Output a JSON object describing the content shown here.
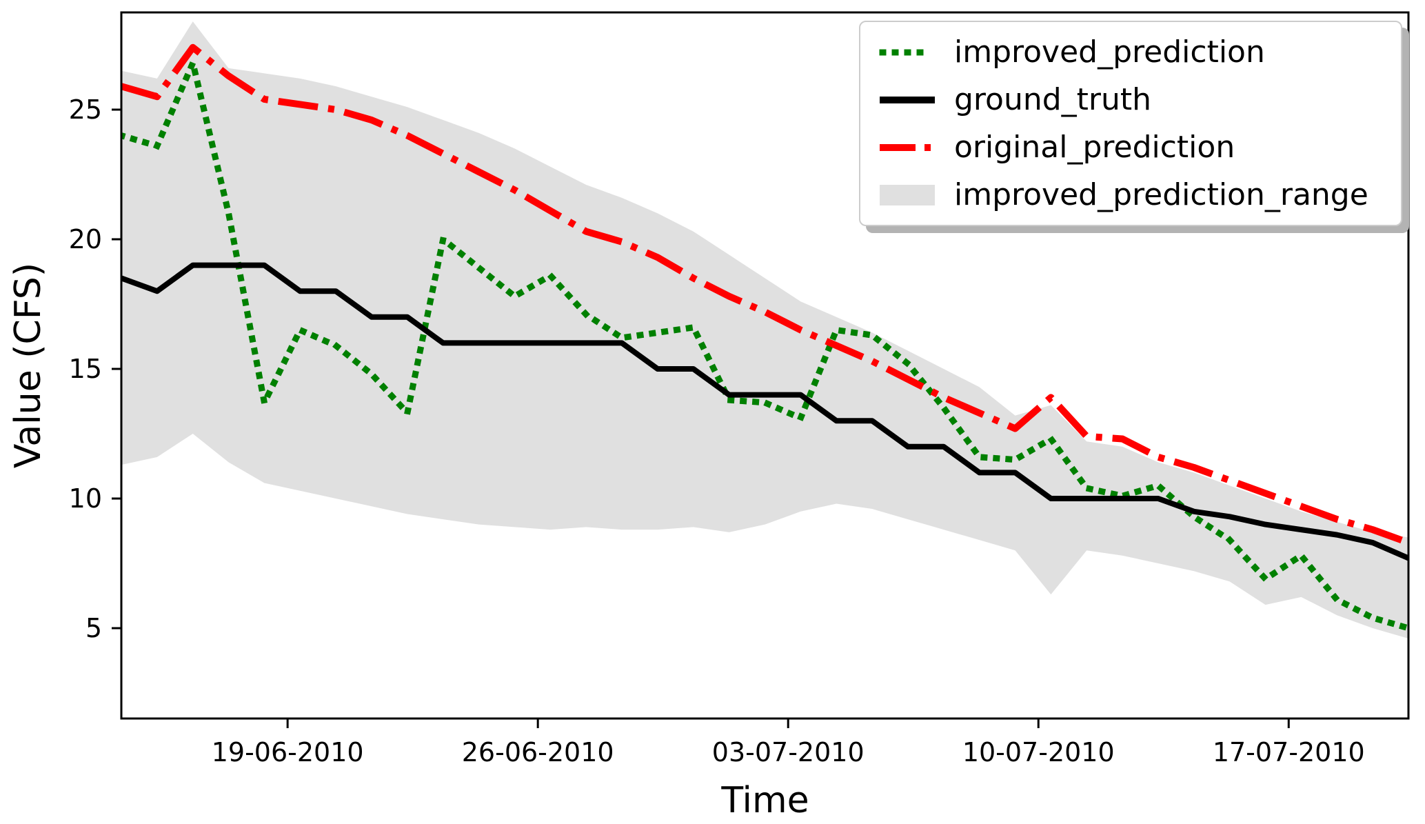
{
  "chart_data": {
    "type": "line",
    "title": "",
    "xlabel": "Time",
    "ylabel": "Value (CFS)",
    "grid": false,
    "legend_position": "upper right",
    "x_unit": "days since 14-06-2010",
    "x_days": [
      0,
      1,
      2,
      3,
      4,
      5,
      6,
      7,
      8,
      9,
      10,
      11,
      12,
      13,
      14,
      15,
      16,
      17,
      18,
      19,
      20,
      21,
      22,
      23,
      24,
      25,
      26,
      27,
      28,
      29,
      30,
      31,
      32,
      33,
      34,
      35,
      36
    ],
    "x_ticks": [
      {
        "label": "19-06-2010",
        "day": 4.65
      },
      {
        "label": "26-06-2010",
        "day": 11.65
      },
      {
        "label": "03-07-2010",
        "day": 18.65
      },
      {
        "label": "10-07-2010",
        "day": 25.65
      },
      {
        "label": "17-07-2010",
        "day": 32.65
      }
    ],
    "y_ticks": [
      5,
      10,
      15,
      20,
      25
    ],
    "ylim": [
      1.5,
      28.75
    ],
    "xlim_days": [
      0,
      36
    ],
    "series": [
      {
        "name": "improved_prediction",
        "style": "dotted",
        "color": "#008000",
        "values": [
          24.0,
          23.6,
          26.8,
          21.0,
          13.7,
          16.5,
          15.9,
          14.8,
          13.3,
          20.0,
          18.9,
          17.8,
          18.6,
          17.1,
          16.2,
          16.4,
          16.6,
          13.8,
          13.7,
          13.1,
          16.5,
          16.3,
          15.2,
          13.5,
          11.6,
          11.5,
          12.3,
          10.4,
          10.1,
          10.5,
          9.3,
          8.4,
          6.9,
          7.8,
          6.1,
          5.4,
          5.0
        ]
      },
      {
        "name": "ground_truth",
        "style": "solid",
        "color": "#000000",
        "values": [
          18.5,
          18,
          19,
          19,
          19,
          18,
          18,
          17,
          17,
          16,
          16,
          16,
          16,
          16,
          16,
          15,
          15,
          14,
          14,
          14,
          13,
          13,
          12,
          12,
          11,
          11,
          10,
          10,
          10,
          10,
          9.5,
          9.3,
          9.0,
          8.8,
          8.6,
          8.3,
          7.7
        ]
      },
      {
        "name": "original_prediction",
        "style": "dashdot",
        "color": "#ff0000",
        "values": [
          25.9,
          25.5,
          27.4,
          26.3,
          25.4,
          25.2,
          25.0,
          24.6,
          24.0,
          23.3,
          22.6,
          21.9,
          21.1,
          20.3,
          19.9,
          19.3,
          18.5,
          17.8,
          17.2,
          16.5,
          15.9,
          15.3,
          14.6,
          13.9,
          13.3,
          12.7,
          13.9,
          12.4,
          12.3,
          11.6,
          11.2,
          10.7,
          10.2,
          9.7,
          9.2,
          8.8,
          8.3
        ]
      }
    ],
    "band": {
      "name": "improved_prediction_range",
      "color": "#e0e0e0",
      "upper": [
        26.5,
        26.2,
        28.4,
        26.6,
        26.4,
        26.2,
        25.9,
        25.5,
        25.1,
        24.6,
        24.1,
        23.5,
        22.8,
        22.1,
        21.6,
        21.0,
        20.3,
        19.4,
        18.5,
        17.6,
        17.0,
        16.4,
        15.7,
        15.0,
        14.3,
        13.2,
        13.6,
        12.2,
        12.0,
        11.4,
        11.0,
        10.5,
        10.0,
        9.5,
        9.1,
        8.7,
        8.5
      ],
      "lower": [
        11.3,
        11.6,
        12.5,
        11.4,
        10.6,
        10.3,
        10.0,
        9.7,
        9.4,
        9.2,
        9.0,
        8.9,
        8.8,
        8.9,
        8.8,
        8.8,
        8.9,
        8.7,
        9.0,
        9.5,
        9.8,
        9.6,
        9.2,
        8.8,
        8.4,
        8.0,
        6.3,
        8.0,
        7.8,
        7.5,
        7.2,
        6.8,
        5.9,
        6.2,
        5.5,
        5.0,
        4.6
      ]
    },
    "legend_entries": [
      {
        "label": "improved_prediction",
        "style": "dotted",
        "color": "#008000"
      },
      {
        "label": "ground_truth",
        "style": "solid",
        "color": "#000000"
      },
      {
        "label": "original_prediction",
        "style": "dashdot",
        "color": "#ff0000"
      },
      {
        "label": "improved_prediction_range",
        "style": "patch",
        "color": "#e0e0e0"
      }
    ]
  }
}
